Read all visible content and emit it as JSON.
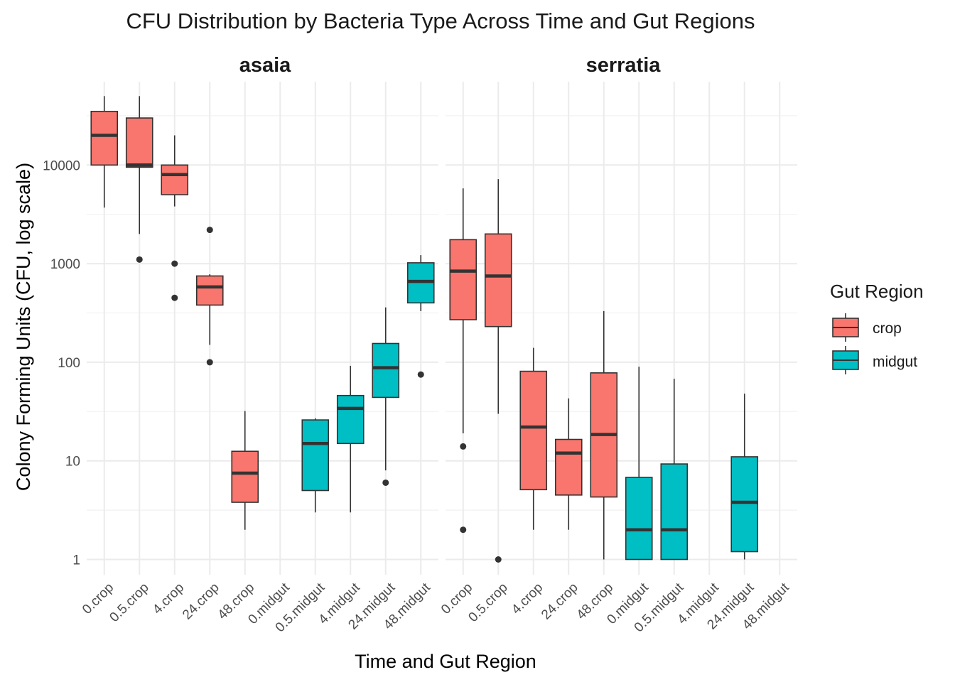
{
  "chart_data": {
    "type": "box",
    "title": "CFU Distribution by Bacteria Type Across Time and Gut Regions",
    "xlabel": "Time and Gut Region",
    "ylabel": "Colony Forming Units (CFU, log scale)",
    "y_scale": "log10",
    "ylim": [
      0.7,
      70000
    ],
    "y_ticks": [
      1,
      10,
      100,
      1000,
      10000
    ],
    "y_tick_labels": [
      "1",
      "10",
      "100",
      "1000",
      "10000"
    ],
    "categories": [
      "0.crop",
      "0.5.crop",
      "4.crop",
      "24.crop",
      "48.crop",
      "0.midgut",
      "0.5.midgut",
      "4.midgut",
      "24.midgut",
      "48.midgut"
    ],
    "grid": true,
    "legend": {
      "title": "Gut Region",
      "position": "right",
      "entries": [
        {
          "label": "crop",
          "color": "#F8766D"
        },
        {
          "label": "midgut",
          "color": "#00BFC4"
        }
      ]
    },
    "panels": [
      {
        "name": "asaia",
        "boxes": [
          {
            "category": "0.crop",
            "group": "crop",
            "whisker_low": 3700,
            "q1": 10000,
            "median": 20000,
            "q3": 35000,
            "whisker_high": 50000,
            "outliers": []
          },
          {
            "category": "0.5.crop",
            "group": "crop",
            "whisker_low": 2000,
            "q1": 9500,
            "median": 10000,
            "q3": 30000,
            "whisker_high": 50000,
            "outliers": [
              1100
            ]
          },
          {
            "category": "4.crop",
            "group": "crop",
            "whisker_low": 3800,
            "q1": 5000,
            "median": 8000,
            "q3": 10000,
            "whisker_high": 20000,
            "outliers": [
              1000,
              450
            ]
          },
          {
            "category": "24.crop",
            "group": "crop",
            "whisker_low": 150,
            "q1": 380,
            "median": 580,
            "q3": 750,
            "whisker_high": 780,
            "outliers": [
              2200,
              100
            ]
          },
          {
            "category": "48.crop",
            "group": "crop",
            "whisker_low": 2,
            "q1": 3.8,
            "median": 7.5,
            "q3": 12.5,
            "whisker_high": 32,
            "outliers": []
          },
          {
            "category": "0.5.midgut",
            "group": "midgut",
            "whisker_low": 3,
            "q1": 5,
            "median": 15,
            "q3": 26,
            "whisker_high": 27,
            "outliers": []
          },
          {
            "category": "4.midgut",
            "group": "midgut",
            "whisker_low": 3,
            "q1": 15,
            "median": 34,
            "q3": 46,
            "whisker_high": 92,
            "outliers": []
          },
          {
            "category": "24.midgut",
            "group": "midgut",
            "whisker_low": 8,
            "q1": 44,
            "median": 88,
            "q3": 155,
            "whisker_high": 360,
            "outliers": [
              6
            ]
          },
          {
            "category": "48.midgut",
            "group": "midgut",
            "whisker_low": 330,
            "q1": 400,
            "median": 660,
            "q3": 1020,
            "whisker_high": 1220,
            "outliers": [
              75
            ]
          }
        ]
      },
      {
        "name": "serratia",
        "boxes": [
          {
            "category": "0.crop",
            "group": "crop",
            "whisker_low": 19,
            "q1": 270,
            "median": 840,
            "q3": 1750,
            "whisker_high": 5800,
            "outliers": [
              14,
              2
            ]
          },
          {
            "category": "0.5.crop",
            "group": "crop",
            "whisker_low": 30,
            "q1": 230,
            "median": 750,
            "q3": 2000,
            "whisker_high": 7200,
            "outliers": [
              1
            ]
          },
          {
            "category": "4.crop",
            "group": "crop",
            "whisker_low": 2,
            "q1": 5.1,
            "median": 22,
            "q3": 81,
            "whisker_high": 140,
            "outliers": []
          },
          {
            "category": "24.crop",
            "group": "crop",
            "whisker_low": 2,
            "q1": 4.5,
            "median": 12,
            "q3": 16.5,
            "whisker_high": 43,
            "outliers": []
          },
          {
            "category": "48.crop",
            "group": "crop",
            "whisker_low": 1,
            "q1": 4.3,
            "median": 18.5,
            "q3": 78,
            "whisker_high": 330,
            "outliers": []
          },
          {
            "category": "0.midgut",
            "group": "midgut",
            "whisker_low": 1,
            "q1": 1,
            "median": 2,
            "q3": 6.8,
            "whisker_high": 90,
            "outliers": []
          },
          {
            "category": "0.5.midgut",
            "group": "midgut",
            "whisker_low": 1,
            "q1": 1,
            "median": 2,
            "q3": 9.3,
            "whisker_high": 68,
            "outliers": []
          },
          {
            "category": "24.midgut",
            "group": "midgut",
            "whisker_low": 1,
            "q1": 1.2,
            "median": 3.8,
            "q3": 11,
            "whisker_high": 48,
            "outliers": []
          }
        ]
      }
    ]
  }
}
